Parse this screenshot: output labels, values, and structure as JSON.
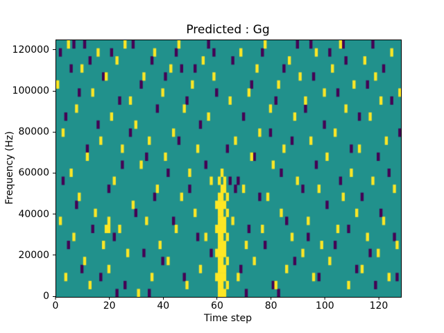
{
  "chart_data": {
    "type": "heatmap",
    "title": "Predicted : Gg",
    "xlabel": "Time step",
    "ylabel": "Frequency (Hz)",
    "xlim": [
      0,
      128
    ],
    "ylim": [
      0,
      125000
    ],
    "x_ticks": [
      0,
      20,
      40,
      60,
      80,
      100,
      120
    ],
    "y_ticks": [
      0,
      20000,
      40000,
      60000,
      80000,
      100000,
      120000
    ],
    "grid_cols": 128,
    "grid_rows": 32,
    "legend": "none",
    "grid": false,
    "colormap": {
      "low": "#440154",
      "mid": "#21918c",
      "high": "#fde725"
    },
    "note": "cells are [time_step, freq_bin] with bin 0 at 0 Hz and bin height ~3906 Hz; background is mid color",
    "yellow_cells": [
      [
        0,
        26
      ],
      [
        1,
        9
      ],
      [
        2,
        20
      ],
      [
        3,
        2
      ],
      [
        4,
        31
      ],
      [
        5,
        15
      ],
      [
        6,
        7
      ],
      [
        7,
        23
      ],
      [
        8,
        12
      ],
      [
        9,
        28
      ],
      [
        10,
        4
      ],
      [
        11,
        17
      ],
      [
        12,
        1
      ],
      [
        13,
        25
      ],
      [
        14,
        10
      ],
      [
        15,
        30
      ],
      [
        16,
        19
      ],
      [
        17,
        6
      ],
      [
        18,
        27
      ],
      [
        18,
        8
      ],
      [
        19,
        3
      ],
      [
        19,
        8
      ],
      [
        19,
        9
      ],
      [
        20,
        22
      ],
      [
        21,
        14
      ],
      [
        22,
        29
      ],
      [
        23,
        8
      ],
      [
        24,
        18
      ],
      [
        25,
        31
      ],
      [
        26,
        5
      ],
      [
        27,
        24
      ],
      [
        28,
        11
      ],
      [
        29,
        21
      ],
      [
        30,
        0
      ],
      [
        31,
        16
      ],
      [
        32,
        27
      ],
      [
        33,
        9
      ],
      [
        34,
        19
      ],
      [
        35,
        2
      ],
      [
        36,
        30
      ],
      [
        37,
        13
      ],
      [
        38,
        6
      ],
      [
        39,
        25
      ],
      [
        40,
        17
      ],
      [
        41,
        4
      ],
      [
        42,
        28
      ],
      [
        43,
        20
      ],
      [
        44,
        8
      ],
      [
        45,
        31
      ],
      [
        46,
        12
      ],
      [
        47,
        23
      ],
      [
        48,
        1
      ],
      [
        49,
        15
      ],
      [
        50,
        26
      ],
      [
        51,
        10
      ],
      [
        52,
        18
      ],
      [
        53,
        3
      ],
      [
        54,
        29
      ],
      [
        55,
        7
      ],
      [
        56,
        22
      ],
      [
        57,
        14
      ],
      [
        58,
        27
      ],
      [
        59,
        5
      ],
      [
        59,
        2
      ],
      [
        59,
        8
      ],
      [
        59,
        11
      ],
      [
        60,
        0
      ],
      [
        60,
        1
      ],
      [
        60,
        2
      ],
      [
        60,
        3
      ],
      [
        60,
        4
      ],
      [
        60,
        5
      ],
      [
        60,
        6
      ],
      [
        60,
        7
      ],
      [
        60,
        8
      ],
      [
        60,
        9
      ],
      [
        60,
        10
      ],
      [
        60,
        11
      ],
      [
        60,
        12
      ],
      [
        60,
        14
      ],
      [
        61,
        0
      ],
      [
        61,
        1
      ],
      [
        61,
        2
      ],
      [
        61,
        3
      ],
      [
        61,
        4
      ],
      [
        61,
        5
      ],
      [
        61,
        6
      ],
      [
        61,
        7
      ],
      [
        61,
        8
      ],
      [
        61,
        9
      ],
      [
        61,
        10
      ],
      [
        61,
        11
      ],
      [
        61,
        12
      ],
      [
        61,
        13
      ],
      [
        61,
        15
      ],
      [
        62,
        0
      ],
      [
        62,
        2
      ],
      [
        62,
        3
      ],
      [
        62,
        5
      ],
      [
        62,
        6
      ],
      [
        62,
        8
      ],
      [
        62,
        9
      ],
      [
        62,
        11
      ],
      [
        62,
        13
      ],
      [
        62,
        14
      ],
      [
        63,
        1
      ],
      [
        63,
        4
      ],
      [
        63,
        7
      ],
      [
        63,
        10
      ],
      [
        63,
        12
      ],
      [
        64,
        24
      ],
      [
        65,
        9
      ],
      [
        66,
        19
      ],
      [
        67,
        2
      ],
      [
        68,
        30
      ],
      [
        69,
        13
      ],
      [
        70,
        6
      ],
      [
        71,
        25
      ],
      [
        72,
        17
      ],
      [
        73,
        4
      ],
      [
        74,
        28
      ],
      [
        75,
        20
      ],
      [
        76,
        8
      ],
      [
        77,
        31
      ],
      [
        78,
        12
      ],
      [
        79,
        23
      ],
      [
        80,
        16
      ],
      [
        81,
        1
      ],
      [
        82,
        26
      ],
      [
        83,
        10
      ],
      [
        84,
        18
      ],
      [
        85,
        3
      ],
      [
        86,
        29
      ],
      [
        87,
        7
      ],
      [
        88,
        22
      ],
      [
        89,
        14
      ],
      [
        90,
        27
      ],
      [
        91,
        5
      ],
      [
        92,
        24
      ],
      [
        93,
        9
      ],
      [
        94,
        19
      ],
      [
        95,
        2
      ],
      [
        96,
        30
      ],
      [
        97,
        13
      ],
      [
        98,
        6
      ],
      [
        99,
        25
      ],
      [
        100,
        17
      ],
      [
        101,
        4
      ],
      [
        102,
        28
      ],
      [
        103,
        20
      ],
      [
        104,
        8
      ],
      [
        105,
        31
      ],
      [
        106,
        12
      ],
      [
        107,
        23
      ],
      [
        108,
        1
      ],
      [
        109,
        15
      ],
      [
        110,
        26
      ],
      [
        111,
        10
      ],
      [
        112,
        18
      ],
      [
        113,
        3
      ],
      [
        114,
        29
      ],
      [
        115,
        7
      ],
      [
        116,
        22
      ],
      [
        117,
        14
      ],
      [
        118,
        27
      ],
      [
        119,
        5
      ],
      [
        120,
        24
      ],
      [
        121,
        9
      ],
      [
        122,
        19
      ],
      [
        123,
        2
      ],
      [
        124,
        30
      ],
      [
        125,
        13
      ],
      [
        126,
        6
      ],
      [
        127,
        25
      ]
    ],
    "purple_cells": [
      [
        1,
        30
      ],
      [
        2,
        14
      ],
      [
        3,
        22
      ],
      [
        4,
        6
      ],
      [
        5,
        28
      ],
      [
        6,
        31
      ],
      [
        7,
        11
      ],
      [
        8,
        25
      ],
      [
        9,
        3
      ],
      [
        10,
        31
      ],
      [
        11,
        18
      ],
      [
        12,
        29
      ],
      [
        13,
        8
      ],
      [
        15,
        21
      ],
      [
        16,
        2
      ],
      [
        17,
        27
      ],
      [
        19,
        13
      ],
      [
        20,
        30
      ],
      [
        21,
        7
      ],
      [
        22,
        0
      ],
      [
        23,
        24
      ],
      [
        24,
        16
      ],
      [
        25,
        1
      ],
      [
        27,
        20
      ],
      [
        28,
        31
      ],
      [
        29,
        10
      ],
      [
        31,
        26
      ],
      [
        32,
        5
      ],
      [
        33,
        17
      ],
      [
        34,
        0
      ],
      [
        35,
        29
      ],
      [
        36,
        12
      ],
      [
        37,
        23
      ],
      [
        39,
        4
      ],
      [
        40,
        27
      ],
      [
        41,
        15
      ],
      [
        43,
        9
      ],
      [
        44,
        30
      ],
      [
        45,
        19
      ],
      [
        46,
        28
      ],
      [
        47,
        2
      ],
      [
        48,
        24
      ],
      [
        49,
        13
      ],
      [
        51,
        28
      ],
      [
        52,
        7
      ],
      [
        53,
        21
      ],
      [
        55,
        16
      ],
      [
        56,
        31
      ],
      [
        57,
        5
      ],
      [
        58,
        30
      ],
      [
        59,
        25
      ],
      [
        63,
        18
      ],
      [
        64,
        14
      ],
      [
        65,
        29
      ],
      [
        66,
        13
      ],
      [
        67,
        14
      ],
      [
        68,
        3
      ],
      [
        69,
        22
      ],
      [
        70,
        0
      ],
      [
        71,
        8
      ],
      [
        72,
        26
      ],
      [
        73,
        17
      ],
      [
        75,
        12
      ],
      [
        76,
        30
      ],
      [
        77,
        6
      ],
      [
        79,
        20
      ],
      [
        80,
        1
      ],
      [
        81,
        24
      ],
      [
        82,
        0
      ],
      [
        83,
        15
      ],
      [
        84,
        28
      ],
      [
        85,
        9
      ],
      [
        87,
        19
      ],
      [
        88,
        4
      ],
      [
        89,
        31
      ],
      [
        91,
        13
      ],
      [
        92,
        23
      ],
      [
        93,
        7
      ],
      [
        94,
        31
      ],
      [
        95,
        27
      ],
      [
        96,
        16
      ],
      [
        97,
        2
      ],
      [
        99,
        21
      ],
      [
        100,
        11
      ],
      [
        101,
        30
      ],
      [
        103,
        6
      ],
      [
        104,
        25
      ],
      [
        105,
        14
      ],
      [
        106,
        31
      ],
      [
        107,
        29
      ],
      [
        108,
        8
      ],
      [
        109,
        18
      ],
      [
        111,
        3
      ],
      [
        112,
        22
      ],
      [
        113,
        12
      ],
      [
        115,
        26
      ],
      [
        116,
        5
      ],
      [
        117,
        31
      ],
      [
        118,
        1
      ],
      [
        119,
        17
      ],
      [
        120,
        10
      ],
      [
        121,
        28
      ],
      [
        123,
        15
      ],
      [
        124,
        24
      ],
      [
        125,
        7
      ],
      [
        126,
        2
      ],
      [
        127,
        20
      ]
    ]
  }
}
